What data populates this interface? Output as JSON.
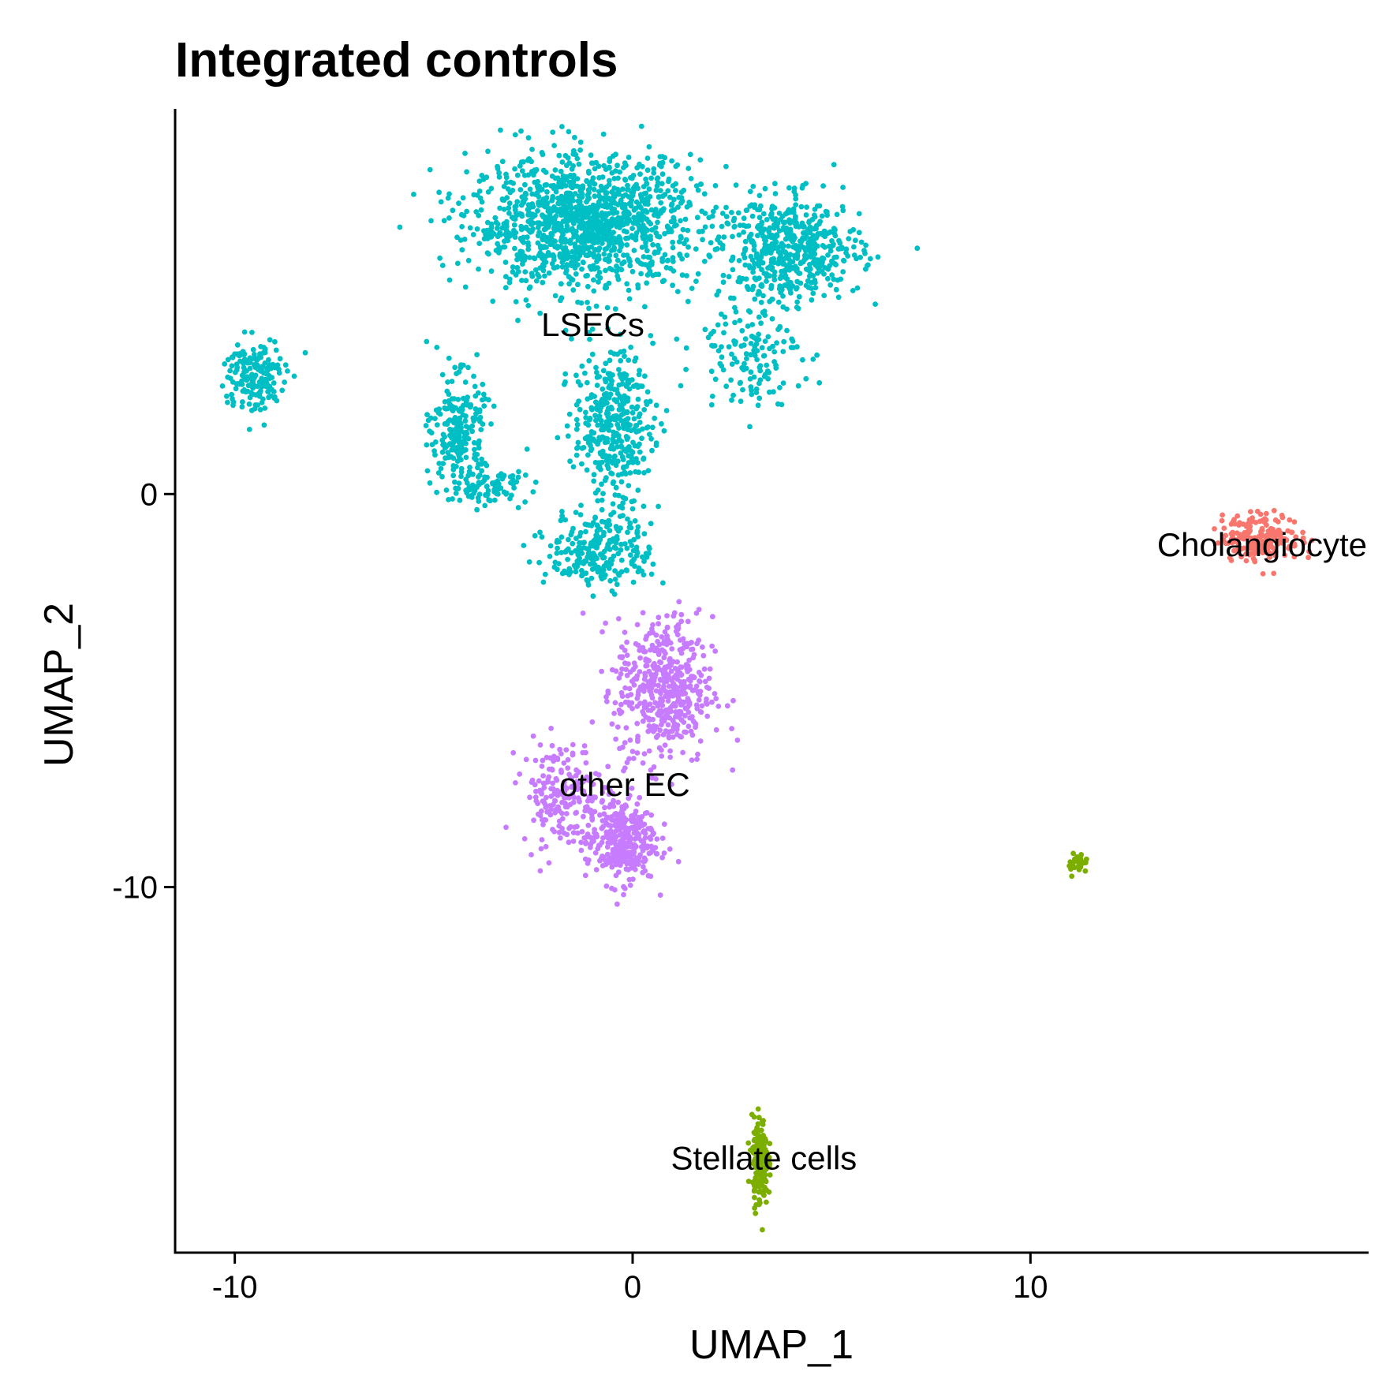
{
  "chart_data": {
    "type": "scatter",
    "title": "Integrated controls",
    "xlabel": "UMAP_1",
    "ylabel": "UMAP_2",
    "xlim": [
      -11.5,
      18.5
    ],
    "ylim": [
      -19.3,
      9.8
    ],
    "x_ticks": [
      -10,
      0,
      10
    ],
    "x_tick_labels": [
      "-10",
      "0",
      "10"
    ],
    "y_ticks": [
      0,
      -10
    ],
    "y_tick_labels": [
      "0",
      "-10"
    ],
    "grid": false,
    "legend": "none",
    "clusters": [
      {
        "label": "LSECs",
        "color": "#00BFC4",
        "label_position": [
          -1.0,
          4.3
        ],
        "regions": [
          {
            "center": [
              -1.2,
              6.9
            ],
            "spread": [
              2.6,
              1.5
            ],
            "n": 1300
          },
          {
            "center": [
              4.0,
              6.2
            ],
            "spread": [
              1.6,
              1.2
            ],
            "n": 520
          },
          {
            "center": [
              2.9,
              3.6
            ],
            "spread": [
              1.2,
              1.2
            ],
            "n": 140
          },
          {
            "center": [
              -9.5,
              3.0
            ],
            "spread": [
              0.7,
              0.9
            ],
            "n": 170
          },
          {
            "center": [
              -4.4,
              1.6
            ],
            "spread": [
              0.6,
              1.3
            ],
            "n": 230
          },
          {
            "center": [
              -3.6,
              0.2
            ],
            "spread": [
              0.9,
              0.4
            ],
            "n": 90
          },
          {
            "center": [
              -0.5,
              1.8
            ],
            "spread": [
              0.9,
              1.7
            ],
            "n": 380
          },
          {
            "center": [
              -0.8,
              -1.4
            ],
            "spread": [
              1.2,
              0.9
            ],
            "n": 260
          }
        ]
      },
      {
        "label": "other EC",
        "color": "#C77CFF",
        "label_position": [
          -0.2,
          -7.4
        ],
        "regions": [
          {
            "center": [
              0.8,
              -5.0
            ],
            "spread": [
              1.1,
              1.7
            ],
            "n": 480
          },
          {
            "center": [
              -1.8,
              -7.6
            ],
            "spread": [
              0.9,
              1.2
            ],
            "n": 190
          },
          {
            "center": [
              -0.3,
              -8.8
            ],
            "spread": [
              0.8,
              1.0
            ],
            "n": 330
          }
        ]
      },
      {
        "label": "Cholangiocytes",
        "display_label": "Cholangiocyte",
        "color": "#F8766D",
        "label_position": [
          15.3,
          -1.3
        ],
        "regions": [
          {
            "center": [
              15.8,
              -1.1
            ],
            "spread": [
              0.9,
              0.55
            ],
            "n": 200
          }
        ]
      },
      {
        "label": "Stellate cells",
        "color": "#7CAE00",
        "label_position": [
          3.3,
          -16.9
        ],
        "regions": [
          {
            "center": [
              3.2,
              -17.0
            ],
            "spread": [
              0.18,
              1.0
            ],
            "n": 190
          },
          {
            "center": [
              11.2,
              -9.4
            ],
            "spread": [
              0.22,
              0.25
            ],
            "n": 30
          }
        ]
      }
    ]
  }
}
